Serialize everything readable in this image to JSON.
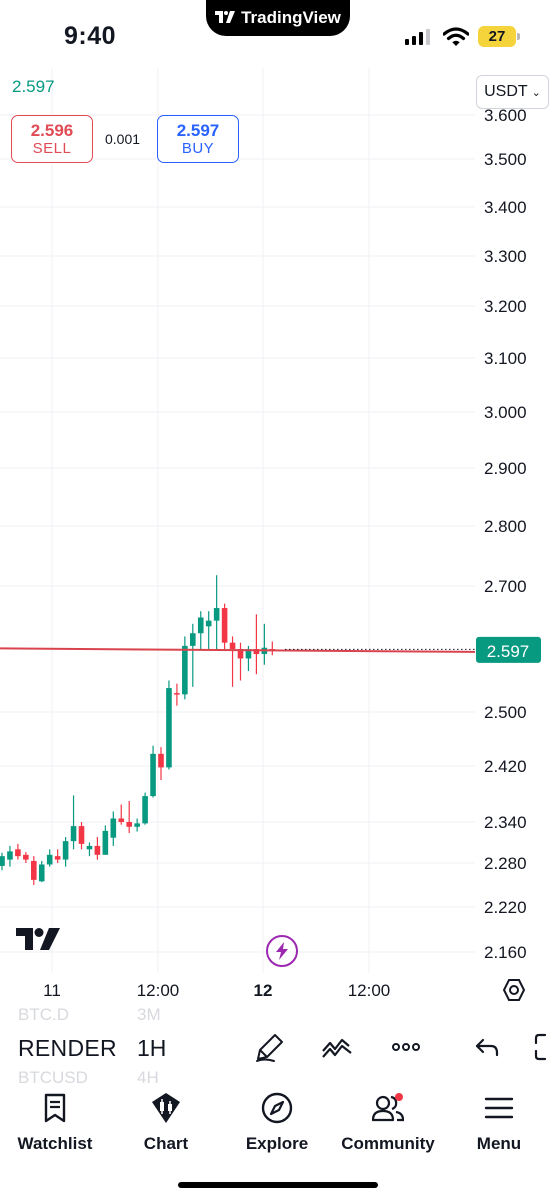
{
  "status_bar": {
    "time": "9:40",
    "app_name": "TradingView",
    "battery": "27"
  },
  "chart_header": {
    "last_price": "2.597",
    "currency": "USDT",
    "sell": {
      "price": "2.596",
      "label": "SELL"
    },
    "spread": "0.001",
    "buy": {
      "price": "2.597",
      "label": "BUY"
    }
  },
  "colors": {
    "up": "#089981",
    "down": "#f23645",
    "price_line": "#d9434d",
    "buy": "#2962ff",
    "sell": "#e04b55",
    "flash": "#9c27b0"
  },
  "chart_data": {
    "type": "candlestick",
    "y_tick_labels": [
      "3.500",
      "3.400",
      "3.300",
      "3.200",
      "3.100",
      "3.000",
      "2.900",
      "2.800",
      "2.700",
      "2.500",
      "2.420",
      "2.340",
      "2.280",
      "2.220",
      "2.160"
    ],
    "clipped_top_label": "3.600",
    "x_tick_labels": [
      {
        "text": "11",
        "bold": false
      },
      {
        "text": "12:00",
        "bold": false
      },
      {
        "text": "12",
        "bold": true
      },
      {
        "text": "12:00",
        "bold": false
      }
    ],
    "last_price_label": "2.597",
    "last_price": 2.597,
    "grid": true,
    "candles": [
      {
        "o": 2.276,
        "h": 2.295,
        "l": 2.27,
        "c": 2.29
      },
      {
        "o": 2.285,
        "h": 2.305,
        "l": 2.275,
        "c": 2.297
      },
      {
        "o": 2.3,
        "h": 2.308,
        "l": 2.285,
        "c": 2.29
      },
      {
        "o": 2.292,
        "h": 2.296,
        "l": 2.28,
        "c": 2.285
      },
      {
        "o": 2.283,
        "h": 2.29,
        "l": 2.25,
        "c": 2.257
      },
      {
        "o": 2.255,
        "h": 2.283,
        "l": 2.254,
        "c": 2.278
      },
      {
        "o": 2.278,
        "h": 2.3,
        "l": 2.275,
        "c": 2.292
      },
      {
        "o": 2.29,
        "h": 2.3,
        "l": 2.28,
        "c": 2.285
      },
      {
        "o": 2.285,
        "h": 2.318,
        "l": 2.275,
        "c": 2.312
      },
      {
        "o": 2.312,
        "h": 2.378,
        "l": 2.3,
        "c": 2.334
      },
      {
        "o": 2.334,
        "h": 2.34,
        "l": 2.3,
        "c": 2.308
      },
      {
        "o": 2.3,
        "h": 2.31,
        "l": 2.29,
        "c": 2.305
      },
      {
        "o": 2.305,
        "h": 2.318,
        "l": 2.285,
        "c": 2.292
      },
      {
        "o": 2.292,
        "h": 2.335,
        "l": 2.292,
        "c": 2.327
      },
      {
        "o": 2.317,
        "h": 2.355,
        "l": 2.305,
        "c": 2.345
      },
      {
        "o": 2.345,
        "h": 2.365,
        "l": 2.336,
        "c": 2.34
      },
      {
        "o": 2.34,
        "h": 2.37,
        "l": 2.324,
        "c": 2.333
      },
      {
        "o": 2.333,
        "h": 2.345,
        "l": 2.326,
        "c": 2.338
      },
      {
        "o": 2.338,
        "h": 2.382,
        "l": 2.336,
        "c": 2.377
      },
      {
        "o": 2.377,
        "h": 2.45,
        "l": 2.375,
        "c": 2.438
      },
      {
        "o": 2.438,
        "h": 2.448,
        "l": 2.4,
        "c": 2.418
      },
      {
        "o": 2.418,
        "h": 2.55,
        "l": 2.415,
        "c": 2.538
      },
      {
        "o": 2.53,
        "h": 2.545,
        "l": 2.51,
        "c": 2.528
      },
      {
        "o": 2.528,
        "h": 2.62,
        "l": 2.52,
        "c": 2.605
      },
      {
        "o": 2.605,
        "h": 2.64,
        "l": 2.54,
        "c": 2.625
      },
      {
        "o": 2.625,
        "h": 2.66,
        "l": 2.6,
        "c": 2.65
      },
      {
        "o": 2.636,
        "h": 2.66,
        "l": 2.6,
        "c": 2.645
      },
      {
        "o": 2.645,
        "h": 2.718,
        "l": 2.6,
        "c": 2.665
      },
      {
        "o": 2.665,
        "h": 2.672,
        "l": 2.6,
        "c": 2.61
      },
      {
        "o": 2.61,
        "h": 2.62,
        "l": 2.54,
        "c": 2.6
      },
      {
        "o": 2.6,
        "h": 2.61,
        "l": 2.55,
        "c": 2.585
      },
      {
        "o": 2.585,
        "h": 2.605,
        "l": 2.565,
        "c": 2.6
      },
      {
        "o": 2.6,
        "h": 2.655,
        "l": 2.56,
        "c": 2.592
      },
      {
        "o": 2.592,
        "h": 2.64,
        "l": 2.575,
        "c": 2.602
      },
      {
        "o": 2.6,
        "h": 2.612,
        "l": 2.59,
        "c": 2.597
      }
    ]
  },
  "toolbar": {
    "ghost_prev_symbol": "BTC.D",
    "ghost_prev_interval": "3M",
    "symbol": "RENDER",
    "interval": "1H",
    "ghost_next_symbol": "BTCUSD",
    "ghost_next_interval": "4H",
    "icons": [
      "brush-icon",
      "indicators-icon",
      "more-icon",
      "undo-icon",
      "fullscreen-icon"
    ]
  },
  "tabbar": {
    "tabs": [
      {
        "id": "watchlist",
        "label": "Watchlist",
        "icon": "bookmark-icon"
      },
      {
        "id": "chart",
        "label": "Chart",
        "icon": "chart-icon"
      },
      {
        "id": "explore",
        "label": "Explore",
        "icon": "compass-icon"
      },
      {
        "id": "community",
        "label": "Community",
        "icon": "people-icon"
      },
      {
        "id": "menu",
        "label": "Menu",
        "icon": "hamburger-icon"
      }
    ]
  }
}
